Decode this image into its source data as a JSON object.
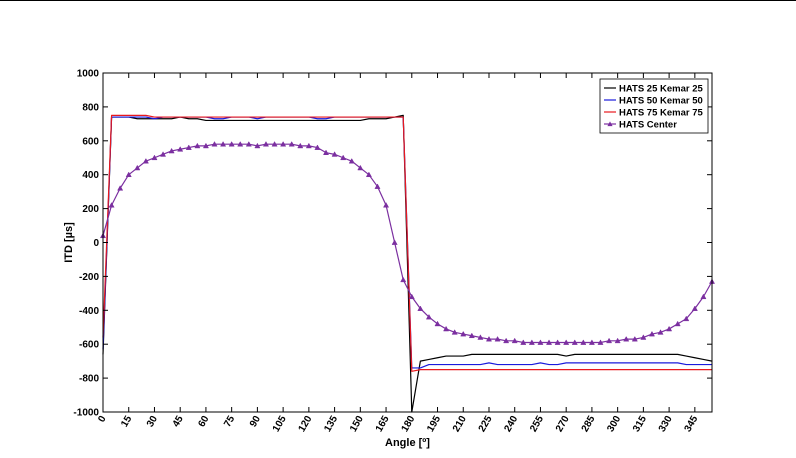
{
  "chart_data": {
    "type": "line",
    "title": "",
    "xlabel": "Angle [º]",
    "ylabel": "ITD [µs]",
    "xlim": [
      0,
      355
    ],
    "ylim": [
      -1000,
      1000
    ],
    "xticks": [
      0,
      15,
      30,
      45,
      60,
      75,
      90,
      105,
      120,
      135,
      150,
      165,
      180,
      195,
      210,
      225,
      240,
      255,
      270,
      285,
      300,
      315,
      330,
      345
    ],
    "yticks": [
      -1000,
      -800,
      -600,
      -400,
      -200,
      0,
      200,
      400,
      600,
      800,
      1000
    ],
    "grid": false,
    "legend_position": "top-right",
    "x": [
      0,
      5,
      10,
      15,
      20,
      25,
      30,
      35,
      40,
      45,
      50,
      55,
      60,
      65,
      70,
      75,
      80,
      85,
      90,
      95,
      100,
      105,
      110,
      115,
      120,
      125,
      130,
      135,
      140,
      145,
      150,
      155,
      160,
      165,
      170,
      175,
      180,
      185,
      190,
      195,
      200,
      205,
      210,
      215,
      220,
      225,
      230,
      235,
      240,
      245,
      250,
      255,
      260,
      265,
      270,
      275,
      280,
      285,
      290,
      295,
      300,
      305,
      310,
      315,
      320,
      325,
      330,
      335,
      340,
      345,
      350,
      355
    ],
    "series": [
      {
        "name": "HATS 25 Kemar 25",
        "color": "#000000",
        "marker": "none",
        "values": [
          -660,
          740,
          740,
          740,
          730,
          730,
          730,
          730,
          730,
          740,
          730,
          730,
          720,
          720,
          720,
          720,
          720,
          720,
          720,
          720,
          720,
          720,
          720,
          720,
          720,
          720,
          720,
          720,
          720,
          720,
          720,
          730,
          730,
          730,
          740,
          750,
          -1000,
          -700,
          -690,
          -680,
          -670,
          -670,
          -670,
          -660,
          -660,
          -660,
          -660,
          -660,
          -660,
          -660,
          -660,
          -660,
          -660,
          -660,
          -670,
          -660,
          -660,
          -660,
          -660,
          -660,
          -660,
          -660,
          -660,
          -660,
          -660,
          -660,
          -660,
          -660,
          -670,
          -680,
          -690,
          -700
        ]
      },
      {
        "name": "HATS 50 Kemar 50",
        "color": "#1a1adc",
        "marker": "none",
        "values": [
          -630,
          740,
          740,
          740,
          740,
          740,
          730,
          740,
          740,
          740,
          740,
          740,
          740,
          730,
          730,
          740,
          740,
          740,
          730,
          740,
          740,
          740,
          740,
          740,
          740,
          730,
          730,
          740,
          740,
          740,
          740,
          740,
          740,
          740,
          740,
          740,
          -740,
          -740,
          -720,
          -720,
          -720,
          -720,
          -720,
          -720,
          -720,
          -710,
          -720,
          -720,
          -720,
          -720,
          -720,
          -710,
          -720,
          -720,
          -710,
          -710,
          -710,
          -710,
          -710,
          -710,
          -710,
          -710,
          -710,
          -710,
          -710,
          -710,
          -710,
          -710,
          -720,
          -720,
          -720,
          -720
        ]
      },
      {
        "name": "HATS 75 Kemar 75",
        "color": "#e8191e",
        "marker": "none",
        "values": [
          -560,
          750,
          750,
          750,
          750,
          750,
          740,
          740,
          740,
          740,
          740,
          740,
          740,
          740,
          740,
          740,
          740,
          740,
          740,
          740,
          740,
          740,
          740,
          740,
          740,
          740,
          740,
          740,
          740,
          740,
          740,
          740,
          740,
          740,
          740,
          740,
          -760,
          -750,
          -750,
          -750,
          -750,
          -750,
          -750,
          -750,
          -750,
          -750,
          -750,
          -750,
          -750,
          -750,
          -750,
          -750,
          -750,
          -750,
          -750,
          -750,
          -750,
          -750,
          -750,
          -750,
          -750,
          -750,
          -750,
          -750,
          -750,
          -750,
          -750,
          -750,
          -750,
          -750,
          -750,
          -750
        ]
      },
      {
        "name": "HATS Center",
        "color": "#7b2fa0",
        "marker": "triangle",
        "values": [
          40,
          220,
          320,
          400,
          440,
          480,
          500,
          520,
          540,
          550,
          560,
          570,
          570,
          580,
          580,
          580,
          580,
          580,
          570,
          580,
          580,
          580,
          580,
          570,
          570,
          560,
          530,
          520,
          500,
          480,
          440,
          400,
          330,
          220,
          0,
          -220,
          -320,
          -390,
          -440,
          -480,
          -510,
          -530,
          -540,
          -550,
          -560,
          -570,
          -570,
          -580,
          -580,
          -590,
          -590,
          -590,
          -590,
          -590,
          -590,
          -590,
          -590,
          -590,
          -590,
          -580,
          -580,
          -570,
          -570,
          -560,
          -540,
          -530,
          -510,
          -480,
          -450,
          -390,
          -320,
          -230
        ]
      }
    ]
  }
}
